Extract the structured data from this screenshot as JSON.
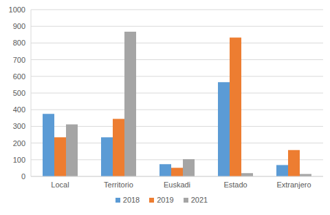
{
  "chart_data": {
    "type": "bar",
    "categories": [
      "Local",
      "Territorio",
      "Euskadi",
      "Estado",
      "Extranjero"
    ],
    "series": [
      {
        "name": "2018",
        "color": "#5b9bd5",
        "values": [
          375,
          235,
          73,
          565,
          68
        ]
      },
      {
        "name": "2019",
        "color": "#ed7d31",
        "values": [
          235,
          345,
          52,
          833,
          158
        ]
      },
      {
        "name": "2021",
        "color": "#a5a5a5",
        "values": [
          312,
          868,
          103,
          20,
          14
        ]
      }
    ],
    "ylim": [
      0,
      1000
    ],
    "yticks": [
      0,
      100,
      200,
      300,
      400,
      500,
      600,
      700,
      800,
      900,
      1000
    ],
    "grid": true,
    "legend": "bottom"
  }
}
